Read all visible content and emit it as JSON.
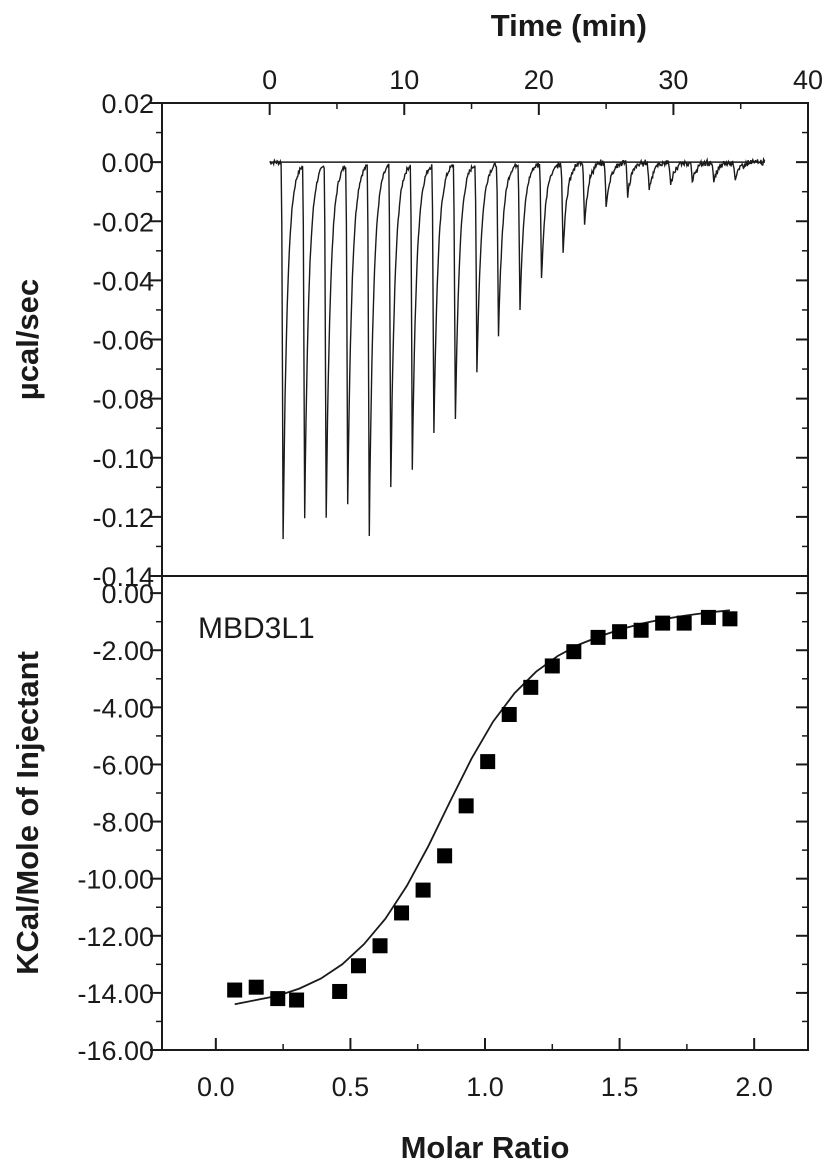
{
  "chart_data": [
    {
      "type": "line",
      "panel": "top",
      "xlabel": "Time (min)",
      "ylabel": "µcal/sec",
      "xlim": [
        -8,
        40
      ],
      "ylim": [
        -0.14,
        0.02
      ],
      "x_ticks": [
        "0",
        "10",
        "20",
        "30",
        "40"
      ],
      "x_tick_values": [
        0,
        10,
        20,
        30,
        40
      ],
      "y_ticks": [
        "0.02",
        "0.00",
        "-0.02",
        "-0.04",
        "-0.06",
        "-0.08",
        "-0.10",
        "-0.12",
        "-0.14"
      ],
      "y_tick_values": [
        0.02,
        0.0,
        -0.02,
        -0.04,
        -0.06,
        -0.08,
        -0.1,
        -0.12,
        -0.14
      ],
      "baseline": 0.0,
      "trace_start": 0.0,
      "trace_end": 36.8,
      "injections": {
        "time_min": [
          1.0,
          2.6,
          4.2,
          5.8,
          7.4,
          9.0,
          10.6,
          12.2,
          13.8,
          15.4,
          17.0,
          18.6,
          20.2,
          21.8,
          23.4,
          25.0,
          26.6,
          28.2,
          29.8,
          31.4,
          33.0,
          34.6
        ],
        "peak_ucal_per_sec": [
          -0.127,
          -0.119,
          -0.119,
          -0.115,
          -0.125,
          -0.109,
          -0.103,
          -0.091,
          -0.087,
          -0.071,
          -0.059,
          -0.049,
          -0.039,
          -0.03,
          -0.02,
          -0.015,
          -0.011,
          -0.009,
          -0.008,
          -0.007,
          -0.007,
          -0.006
        ]
      }
    },
    {
      "type": "scatter",
      "panel": "bottom",
      "annotation": "MBD3L1",
      "xlabel": "Molar Ratio",
      "ylabel": "KCal/Mole of Injectant",
      "xlim": [
        -0.2,
        2.2
      ],
      "ylim": [
        -16.0,
        0.6
      ],
      "x_ticks": [
        "0.0",
        "0.5",
        "1.0",
        "1.5",
        "2.0"
      ],
      "x_tick_values": [
        0.0,
        0.5,
        1.0,
        1.5,
        2.0
      ],
      "y_ticks": [
        "0.00",
        "-2.00",
        "-4.00",
        "-6.00",
        "-8.00",
        "-10.00",
        "-12.00",
        "-14.00",
        "-16.00"
      ],
      "y_tick_values": [
        0.0,
        -2.0,
        -4.0,
        -6.0,
        -8.0,
        -10.0,
        -12.0,
        -14.0,
        -16.0
      ],
      "series": [
        {
          "marker": "square",
          "x": [
            0.07,
            0.15,
            0.23,
            0.3,
            0.46,
            0.53,
            0.61,
            0.69,
            0.77,
            0.85,
            0.93,
            1.01,
            1.09,
            1.17,
            1.25,
            1.33,
            1.42,
            1.5,
            1.58,
            1.66,
            1.74,
            1.83,
            1.91
          ],
          "y": [
            -13.9,
            -13.8,
            -14.2,
            -14.25,
            -13.95,
            -13.05,
            -12.35,
            -11.2,
            -10.4,
            -9.2,
            -7.45,
            -5.9,
            -4.25,
            -3.3,
            -2.55,
            -2.05,
            -1.55,
            -1.35,
            -1.3,
            -1.05,
            -1.05,
            -0.85,
            -0.9
          ]
        },
        {
          "type": "line",
          "style": "fit",
          "x": [
            0.07,
            0.15,
            0.23,
            0.31,
            0.39,
            0.47,
            0.55,
            0.63,
            0.71,
            0.79,
            0.87,
            0.95,
            1.03,
            1.11,
            1.19,
            1.27,
            1.35,
            1.43,
            1.51,
            1.59,
            1.67,
            1.75,
            1.83,
            1.91
          ],
          "y": [
            -14.4,
            -14.25,
            -14.1,
            -13.85,
            -13.5,
            -13.0,
            -12.3,
            -11.4,
            -10.25,
            -8.85,
            -7.3,
            -5.8,
            -4.5,
            -3.5,
            -2.75,
            -2.2,
            -1.8,
            -1.5,
            -1.25,
            -1.05,
            -0.9,
            -0.78,
            -0.68,
            -0.6
          ]
        }
      ]
    }
  ]
}
